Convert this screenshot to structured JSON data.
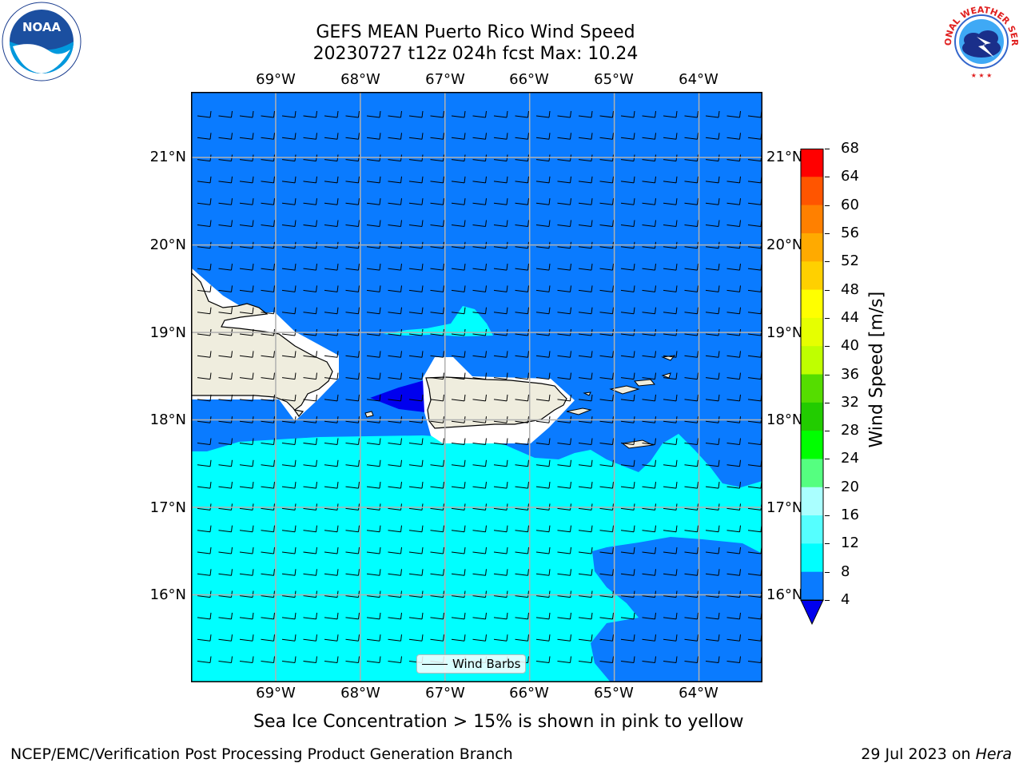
{
  "title": {
    "line1": "GEFS MEAN Puerto Rico Wind Speed",
    "line2": "20230727 t12z 024h fcst   Max: 10.24"
  },
  "logos": {
    "noaa_text": "NOAA",
    "nws_text": "NATIONAL WEATHER SERVICE"
  },
  "map": {
    "lon_ticks": [
      "69°W",
      "68°W",
      "67°W",
      "66°W",
      "65°W",
      "64°W"
    ],
    "lat_ticks": [
      "21°N",
      "20°N",
      "19°N",
      "18°N",
      "17°N",
      "16°N"
    ],
    "lon_range": [
      -70.0,
      -63.25
    ],
    "lat_range": [
      15.0,
      21.75
    ],
    "legend_label": "Wind Barbs",
    "colors": {
      "band_4_8": "#0a7bff",
      "band_8_12": "#00ffff",
      "band_below_4": "#0000ee",
      "land": "#efedde",
      "grid": "#b0b0b0"
    }
  },
  "colorbar": {
    "label": "Wind Speed [m/s]",
    "ticks": [
      "68",
      "64",
      "60",
      "56",
      "52",
      "48",
      "44",
      "40",
      "36",
      "32",
      "28",
      "24",
      "20",
      "16",
      "12",
      "8",
      "4"
    ],
    "colors": [
      "#ff0000",
      "#ff2a00",
      "#ff5500",
      "#ff8000",
      "#ffaa00",
      "#ffd000",
      "#ffff00",
      "#e6ff00",
      "#bfff00",
      "#55dd00",
      "#22cc00",
      "#00ff00",
      "#55ff80",
      "#aaffff",
      "#55ffff",
      "#00ffff",
      "#0a7bff"
    ],
    "extend_color": "#0000ee"
  },
  "caption": "Sea Ice Concentration > 15% is shown in pink to yellow",
  "footer": {
    "left": "NCEP/EMC/Verification Post Processing Product Generation Branch",
    "right_date": "29 Jul 2023 on ",
    "right_host": "Hera"
  }
}
